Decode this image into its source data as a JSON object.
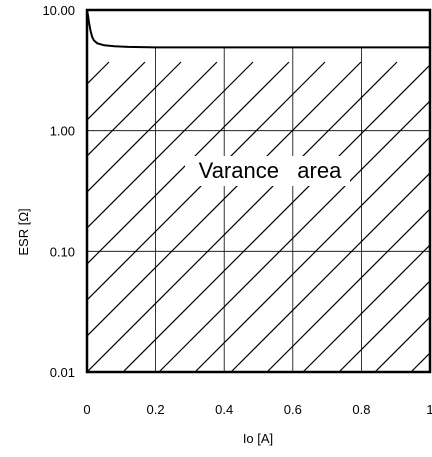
{
  "chart_data": {
    "type": "line",
    "title": "",
    "xlabel": "Io [A]",
    "ylabel": "ESR [Ω]",
    "x_scale": "linear",
    "y_scale": "log",
    "xlim": [
      0,
      1
    ],
    "ylim": [
      0.01,
      10
    ],
    "x_ticks": [
      0,
      0.2,
      0.4,
      0.6,
      0.8,
      1
    ],
    "x_tick_labels": [
      "0",
      "0.2",
      "0.4",
      "0.6",
      "0.8",
      "1"
    ],
    "y_ticks": [
      0.01,
      0.1,
      1,
      10
    ],
    "y_tick_labels": [
      "0.01",
      "0.10",
      "1.00",
      "10.00"
    ],
    "grid": true,
    "series": [
      {
        "x": [
          0.0,
          0.003,
          0.006,
          0.01,
          0.015,
          0.02,
          0.03,
          0.05,
          0.08,
          0.12,
          0.2,
          0.3,
          0.5,
          0.7,
          0.9,
          1.0
        ],
        "y": [
          10.0,
          9.0,
          7.8,
          6.8,
          6.0,
          5.6,
          5.3,
          5.1,
          5.0,
          4.95,
          4.9,
          4.9,
          4.9,
          4.9,
          4.9,
          4.9
        ]
      }
    ],
    "hatched_region": {
      "label": "Varance   area"
    }
  }
}
